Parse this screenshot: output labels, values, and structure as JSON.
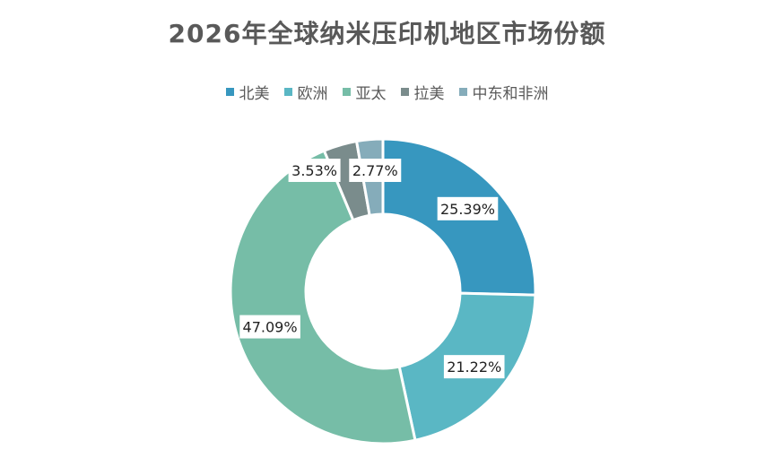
{
  "chart_data": {
    "type": "pie",
    "donut": true,
    "title": "2026年全球纳米压印机地区市场份额",
    "categories": [
      "北美",
      "欧洲",
      "亚太",
      "拉美",
      "中东和非洲"
    ],
    "values": [
      25.39,
      21.22,
      47.09,
      3.53,
      2.77
    ],
    "labels": [
      "25.39%",
      "21.22%",
      "47.09%",
      "3.53%",
      "2.77%"
    ],
    "colors": [
      "#3797BF",
      "#5AB7C4",
      "#76BDA7",
      "#7A8C8C",
      "#85ACBA"
    ],
    "legend_position": "top"
  }
}
